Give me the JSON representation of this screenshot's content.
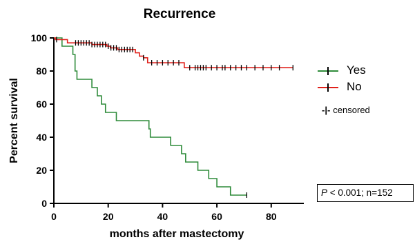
{
  "chart_data": {
    "type": "line",
    "subtype": "kaplan-meier",
    "title": "Recurrence",
    "xlabel": "months after mastectomy",
    "ylabel": "Percent survival",
    "xlim": [
      0,
      92
    ],
    "ylim": [
      0,
      100
    ],
    "xticks": [
      0,
      20,
      40,
      60,
      80
    ],
    "yticks": [
      0,
      20,
      40,
      60,
      80,
      100
    ],
    "grid": false,
    "legend_position": "right",
    "series": [
      {
        "name": "Yes",
        "color": "#2e8b3a",
        "steps": [
          [
            0,
            100
          ],
          [
            3,
            95
          ],
          [
            7,
            90
          ],
          [
            7.8,
            80
          ],
          [
            8.5,
            75
          ],
          [
            14,
            70
          ],
          [
            16,
            65
          ],
          [
            17.5,
            60
          ],
          [
            19,
            55
          ],
          [
            23,
            50
          ],
          [
            35,
            45
          ],
          [
            35.5,
            40
          ],
          [
            43,
            35
          ],
          [
            47,
            30
          ],
          [
            48.5,
            25
          ],
          [
            53,
            20
          ],
          [
            57,
            15
          ],
          [
            60,
            10
          ],
          [
            65,
            5
          ],
          [
            71,
            5
          ]
        ],
        "censored": [
          71
        ]
      },
      {
        "name": "No",
        "color": "#e0211b",
        "steps": [
          [
            0,
            100
          ],
          [
            0.6,
            99
          ],
          [
            5,
            97
          ],
          [
            14,
            96
          ],
          [
            19.5,
            95
          ],
          [
            20.8,
            94
          ],
          [
            23.5,
            93
          ],
          [
            30,
            91
          ],
          [
            31.5,
            89
          ],
          [
            33,
            88
          ],
          [
            34.5,
            85
          ],
          [
            48,
            82
          ],
          [
            88,
            82
          ]
        ],
        "censored": [
          1,
          8,
          9,
          10,
          11,
          12,
          13,
          14,
          15,
          16,
          17,
          18,
          19,
          20,
          21,
          22,
          23,
          24,
          25,
          26,
          27,
          28,
          29,
          33,
          36,
          38,
          40,
          42,
          44,
          46,
          50,
          52,
          53,
          54,
          55,
          56,
          58,
          60,
          62,
          63,
          65,
          67,
          69,
          71,
          74,
          77,
          80,
          83,
          88
        ]
      }
    ],
    "legend": {
      "censored_symbol": "-|-",
      "censored_label": "censored"
    },
    "annotation": {
      "p_symbol": "P",
      "p_rest": " < 0.001; n=152"
    }
  }
}
